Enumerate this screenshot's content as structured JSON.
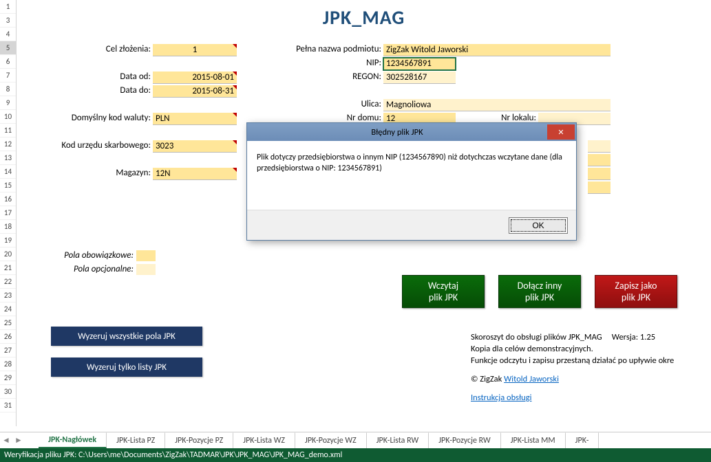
{
  "title": {
    "text": "JPK_MAG",
    "color": "#1f4e79"
  },
  "row_headers": [
    1,
    3,
    4,
    5,
    6,
    7,
    8,
    9,
    10,
    11,
    12,
    13,
    14,
    15,
    16,
    17,
    18,
    19,
    20,
    21,
    22,
    23,
    24,
    25,
    26,
    27,
    28,
    29,
    30,
    31
  ],
  "selected_row_index": 3,
  "labels": {
    "cel": "Cel złożenia:",
    "data_od": "Data od:",
    "data_do": "Data do:",
    "waluta": "Domyślny kod waluty:",
    "urzad": "Kod urzędu skarbowego:",
    "magazyn": "Magazyn:",
    "nazwa": "Pełna nazwa podmiotu:",
    "nip": "NIP:",
    "regon": "REGON:",
    "ulica": "Ulica:",
    "nrdomu": "Nr domu:",
    "nrlokalu": "Nr lokalu:"
  },
  "values": {
    "cel": "1",
    "data_od": "2015-08-01",
    "data_do": "2015-08-31",
    "waluta": "PLN",
    "urzad": "3023",
    "magazyn": "12N",
    "nazwa": "ZigZak Witold Jaworski",
    "nip": "1234567891",
    "regon": "302528167",
    "ulica": "Magnoliowa",
    "nrdomu": "12"
  },
  "colors": {
    "required_bg": "#ffe699",
    "optional_bg": "#fff2cc",
    "green_btn": "#0a6b0a",
    "red_btn": "#c01818",
    "navy_btn": "#1f3864",
    "status_bg": "#0f5b32",
    "accent": "#217346"
  },
  "legend": {
    "required": "Pola obowiązkowe:",
    "optional": "Pola opcjonalne:"
  },
  "buttons": {
    "wczytaj": {
      "l1": "Wczytaj",
      "l2": "plik JPK"
    },
    "dolacz": {
      "l1": "Dołącz inny",
      "l2": "plik JPK"
    },
    "zapisz": {
      "l1": "Zapisz jako",
      "l2": "plik JPK"
    },
    "wyzeruj_all": "Wyzeruj  wszystkie pola JPK",
    "wyzeruj_listy": "Wyzeruj tylko listy JPK"
  },
  "info": {
    "line1a": "Skoroszyt do obsługi plików JPK_MAG",
    "line1b": "Wersja: 1.25",
    "line2": "Kopia dla celów demonstracyjnych.",
    "line3": "Funkcje odczytu i zapisu przestaną działać po upływie okre",
    "copyright_prefix": "© ZigZak ",
    "copyright_link": "Witold Jaworski",
    "manual": "Instrukcja obsługi"
  },
  "dialog": {
    "title": "Błędny plik JPK",
    "body": "Plik dotyczy przedsiębiorstwa o innym NIP (1234567890) niż dotychczas wczytane dane (dla przedsiębiorstwa o NIP: 1234567891)",
    "ok": "OK"
  },
  "tabs": {
    "items": [
      "JPK-Nagłówek",
      "JPK-Lista PZ",
      "JPK-Pozycje PZ",
      "JPK-Lista WZ",
      "JPK-Pozycje WZ",
      "JPK-Lista RW",
      "JPK-Pozycje RW",
      "JPK-Lista MM",
      "JPK-"
    ],
    "active_index": 0
  },
  "status": "Weryfikacja pliku JPK: C:\\Users\\me\\Documents\\ZigZak\\TADMAR\\JPK\\JPK_MAG\\JPK_MAG_demo.xml"
}
